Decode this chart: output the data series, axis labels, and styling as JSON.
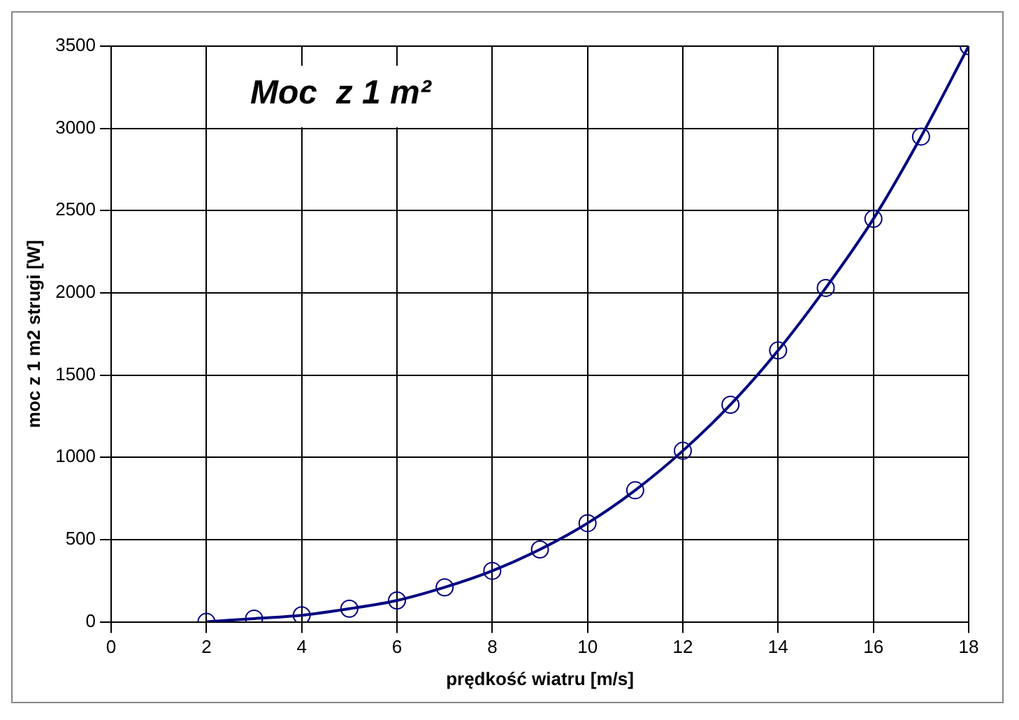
{
  "chart_data": {
    "type": "line",
    "title": "Moc  z 1 m²",
    "xlabel": "prędkość wiatru [m/s]",
    "ylabel": "moc z 1 m2 strugi [W]",
    "x": [
      2,
      3,
      4,
      5,
      6,
      7,
      8,
      9,
      10,
      11,
      12,
      13,
      14,
      15,
      16,
      17,
      18
    ],
    "series": [
      {
        "color": "#000080",
        "values": [
          0,
          20,
          40,
          80,
          130,
          210,
          310,
          440,
          600,
          800,
          1040,
          1320,
          1650,
          2030,
          2450,
          2950,
          3500
        ]
      }
    ],
    "xlim": [
      0,
      18
    ],
    "xticks": [
      0,
      2,
      4,
      6,
      8,
      10,
      12,
      14,
      16,
      18
    ],
    "ylim": [
      0,
      3500
    ],
    "yticks": [
      0,
      500,
      1000,
      1500,
      2000,
      2500,
      3000,
      3500
    ],
    "grid": true,
    "legend": false,
    "marker": "circle",
    "line_style": "solid"
  }
}
